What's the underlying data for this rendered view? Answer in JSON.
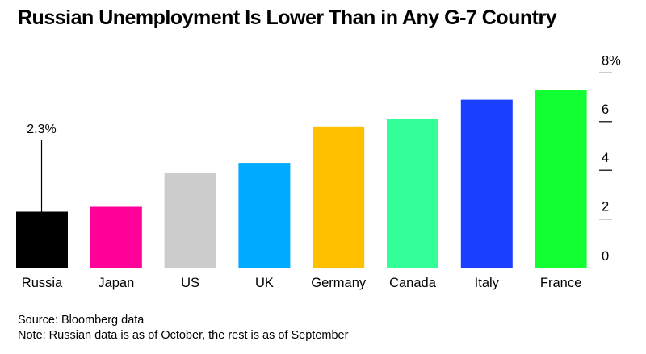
{
  "title": "Russian Unemployment Is Lower Than in Any G-7 Country",
  "source": "Source: Bloomberg data",
  "note": "Note: Russian data is as of October, the rest is as of September",
  "chart_data": {
    "type": "bar",
    "title": "Russian Unemployment Is Lower Than in Any G-7 Country",
    "categories": [
      "Russia",
      "Japan",
      "US",
      "UK",
      "Germany",
      "Canada",
      "Italy",
      "France"
    ],
    "values": [
      2.3,
      2.5,
      3.9,
      4.3,
      5.8,
      6.1,
      6.9,
      7.3
    ],
    "colors": [
      "#000000",
      "#ff0099",
      "#cccccc",
      "#00aaff",
      "#ffc000",
      "#33ff99",
      "#1a3fff",
      "#11ff33"
    ],
    "annotation": {
      "category": "Russia",
      "text": "2.3%"
    },
    "yticks": [
      "0",
      "2",
      "4",
      "6",
      "8%"
    ],
    "ytick_values": [
      0,
      2,
      4,
      6,
      8
    ],
    "ylim": [
      0,
      8
    ],
    "yaxis_position": "right",
    "grid": false,
    "legend": "none"
  }
}
